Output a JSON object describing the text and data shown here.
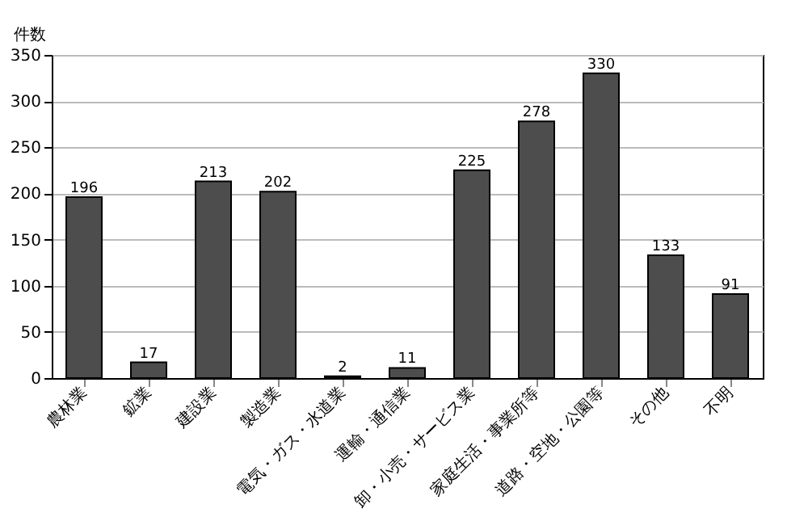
{
  "chart_data": {
    "type": "bar",
    "ylabel": "件数",
    "categories": [
      "農林業",
      "鉱業",
      "建設業",
      "製造業",
      "電気・ガス・水道業",
      "運輸・通信業",
      "卸・小売・サービス業",
      "家庭生活・事業所等",
      "道路・空地・公園等",
      "その他",
      "不明"
    ],
    "values": [
      196,
      17,
      213,
      202,
      2,
      11,
      225,
      278,
      330,
      133,
      91
    ],
    "color": "#4d4d4d",
    "ylim": [
      0,
      350
    ],
    "yticks": [
      0,
      50,
      100,
      150,
      200,
      250,
      300,
      350
    ],
    "grid": "y",
    "data_labels": true
  }
}
